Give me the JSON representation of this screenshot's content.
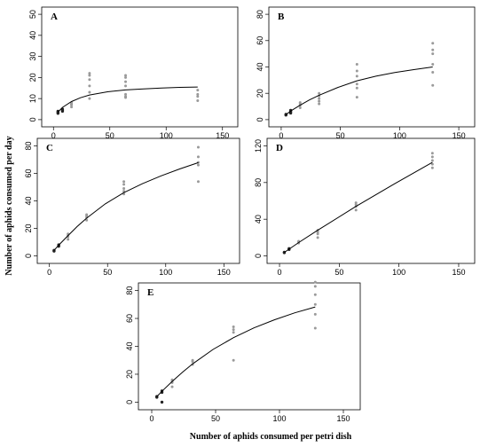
{
  "figure": {
    "ylabel": "Number of aphids consumed per day",
    "xlabel": "Number of aphids consumed per petri dish"
  },
  "chart_data": [
    {
      "type": "scatter",
      "panel": "A",
      "xlim": [
        0,
        150
      ],
      "ylim": [
        0,
        50
      ],
      "xticks": [
        0,
        50,
        100,
        150
      ],
      "yticks": [
        0,
        10,
        20,
        30,
        40,
        50
      ],
      "grid": false,
      "points": [
        [
          4,
          3
        ],
        [
          4,
          4
        ],
        [
          4,
          3.5
        ],
        [
          8,
          4
        ],
        [
          8,
          5
        ],
        [
          8,
          4.5
        ],
        [
          16,
          6
        ],
        [
          16,
          7
        ],
        [
          16,
          8
        ],
        [
          16,
          7.5
        ],
        [
          32,
          10
        ],
        [
          32,
          13
        ],
        [
          32,
          16
        ],
        [
          32,
          19
        ],
        [
          32,
          21
        ],
        [
          32,
          22
        ],
        [
          64,
          10.5
        ],
        [
          64,
          11
        ],
        [
          64,
          12
        ],
        [
          64,
          16
        ],
        [
          64,
          18
        ],
        [
          64,
          20
        ],
        [
          64,
          21
        ],
        [
          128,
          9
        ],
        [
          128,
          11
        ],
        [
          128,
          12
        ],
        [
          128,
          14
        ]
      ],
      "curve": {
        "x": [
          4,
          8,
          16,
          24,
          32,
          48,
          64,
          80,
          96,
          112,
          128
        ],
        "y": [
          3.6,
          5.8,
          8.6,
          10.4,
          11.7,
          13.2,
          14.1,
          14.6,
          15,
          15.3,
          15.5
        ]
      }
    },
    {
      "type": "scatter",
      "panel": "B",
      "xlim": [
        0,
        150
      ],
      "ylim": [
        0,
        80
      ],
      "xticks": [
        0,
        50,
        100,
        150
      ],
      "yticks": [
        0,
        20,
        40,
        60,
        80
      ],
      "grid": false,
      "points": [
        [
          4,
          3.5
        ],
        [
          4,
          4
        ],
        [
          8,
          6
        ],
        [
          8,
          7
        ],
        [
          8,
          5
        ],
        [
          16,
          9
        ],
        [
          16,
          11
        ],
        [
          16,
          13
        ],
        [
          16,
          12
        ],
        [
          32,
          12
        ],
        [
          32,
          14
        ],
        [
          32,
          16
        ],
        [
          32,
          18
        ],
        [
          32,
          20
        ],
        [
          64,
          17
        ],
        [
          64,
          24
        ],
        [
          64,
          27
        ],
        [
          64,
          33
        ],
        [
          64,
          37
        ],
        [
          64,
          42
        ],
        [
          128,
          26
        ],
        [
          128,
          36
        ],
        [
          128,
          42
        ],
        [
          128,
          50
        ],
        [
          128,
          53
        ],
        [
          128,
          58
        ]
      ],
      "curve": {
        "x": [
          4,
          8,
          16,
          24,
          32,
          48,
          64,
          80,
          96,
          112,
          128
        ],
        "y": [
          3.8,
          6.5,
          11,
          15,
          18.5,
          24.5,
          29.5,
          33,
          35.8,
          38,
          40
        ]
      }
    },
    {
      "type": "scatter",
      "panel": "C",
      "xlim": [
        0,
        150
      ],
      "ylim": [
        0,
        80
      ],
      "xticks": [
        0,
        50,
        100,
        150
      ],
      "yticks": [
        0,
        20,
        40,
        60,
        80
      ],
      "grid": false,
      "points": [
        [
          4,
          3.5
        ],
        [
          4,
          4
        ],
        [
          8,
          7
        ],
        [
          8,
          8
        ],
        [
          16,
          12
        ],
        [
          16,
          14
        ],
        [
          16,
          15
        ],
        [
          16,
          16
        ],
        [
          32,
          26
        ],
        [
          32,
          28
        ],
        [
          32,
          29
        ],
        [
          32,
          30
        ],
        [
          64,
          45
        ],
        [
          64,
          47
        ],
        [
          64,
          49
        ],
        [
          64,
          52
        ],
        [
          64,
          54
        ],
        [
          128,
          54
        ],
        [
          128,
          66
        ],
        [
          128,
          68
        ],
        [
          128,
          72
        ],
        [
          128,
          79
        ]
      ],
      "curve": {
        "x": [
          4,
          8,
          16,
          24,
          32,
          48,
          64,
          80,
          96,
          112,
          128
        ],
        "y": [
          4,
          7.8,
          14.8,
          21.4,
          27.4,
          37.8,
          46,
          52.5,
          58.2,
          63.2,
          67.8
        ]
      }
    },
    {
      "type": "scatter",
      "panel": "D",
      "xlim": [
        0,
        150
      ],
      "ylim": [
        0,
        120
      ],
      "xticks": [
        0,
        50,
        100,
        150
      ],
      "yticks": [
        0,
        40,
        80,
        120
      ],
      "grid": false,
      "points": [
        [
          4,
          3.5
        ],
        [
          4,
          4
        ],
        [
          8,
          7
        ],
        [
          8,
          8
        ],
        [
          16,
          14
        ],
        [
          16,
          15
        ],
        [
          16,
          16
        ],
        [
          32,
          20
        ],
        [
          32,
          24
        ],
        [
          32,
          26
        ],
        [
          32,
          28
        ],
        [
          64,
          50
        ],
        [
          64,
          54
        ],
        [
          64,
          56
        ],
        [
          64,
          58
        ],
        [
          128,
          96
        ],
        [
          128,
          100
        ],
        [
          128,
          104
        ],
        [
          128,
          108
        ],
        [
          128,
          112
        ]
      ],
      "curve": {
        "x": [
          4,
          16,
          32,
          64,
          96,
          128
        ],
        "y": [
          3.8,
          14.5,
          28,
          54,
          78.5,
          102
        ]
      }
    },
    {
      "type": "scatter",
      "panel": "E",
      "xlim": [
        0,
        150
      ],
      "ylim": [
        0,
        80
      ],
      "xticks": [
        0,
        50,
        100,
        150
      ],
      "yticks": [
        0,
        20,
        40,
        60,
        80
      ],
      "grid": false,
      "points": [
        [
          4,
          3.5
        ],
        [
          4,
          4
        ],
        [
          8,
          0
        ],
        [
          8,
          7
        ],
        [
          8,
          8
        ],
        [
          16,
          11
        ],
        [
          16,
          14
        ],
        [
          16,
          15
        ],
        [
          16,
          16
        ],
        [
          32,
          27
        ],
        [
          32,
          29
        ],
        [
          32,
          30
        ],
        [
          64,
          30
        ],
        [
          64,
          50
        ],
        [
          64,
          52
        ],
        [
          64,
          54
        ],
        [
          128,
          53
        ],
        [
          128,
          63
        ],
        [
          128,
          70
        ],
        [
          128,
          77
        ],
        [
          128,
          83
        ],
        [
          128,
          86
        ]
      ],
      "curve": {
        "x": [
          4,
          8,
          16,
          24,
          32,
          48,
          64,
          80,
          96,
          112,
          128
        ],
        "y": [
          4,
          7.8,
          14.8,
          21.4,
          27.4,
          37.8,
          46.2,
          53.2,
          59,
          64,
          68.2
        ]
      }
    }
  ]
}
